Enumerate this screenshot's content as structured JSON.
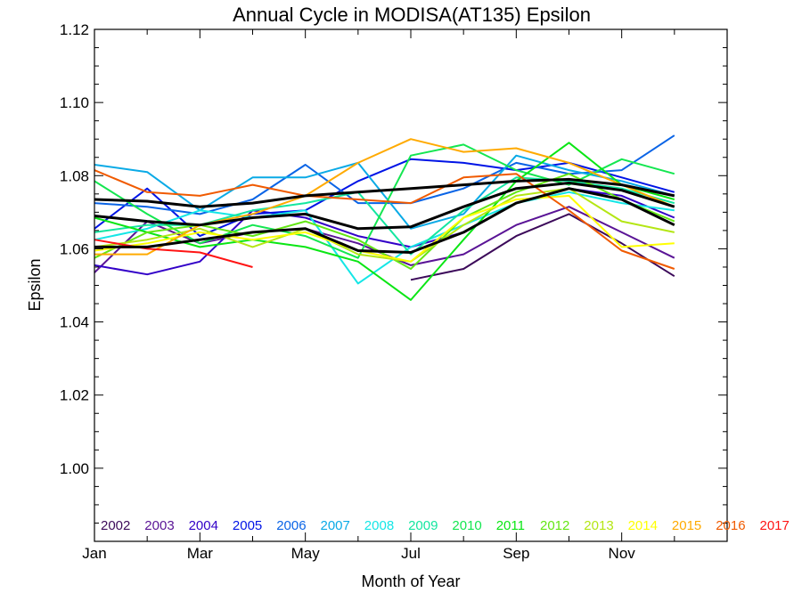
{
  "chart_data": {
    "type": "line",
    "title": "Annual Cycle in MODISA(AT135) Epsilon",
    "xlabel": "Month of Year",
    "ylabel": "Epsilon",
    "xlim": [
      1,
      13
    ],
    "ylim": [
      0.98,
      1.12
    ],
    "x_ticks": [
      {
        "value": 1,
        "label": "Jan"
      },
      {
        "value": 3,
        "label": "Mar"
      },
      {
        "value": 5,
        "label": "May"
      },
      {
        "value": 7,
        "label": "Jul"
      },
      {
        "value": 9,
        "label": "Sep"
      },
      {
        "value": 11,
        "label": "Nov"
      }
    ],
    "y_ticks": [
      {
        "value": 1.0,
        "label": "1.00"
      },
      {
        "value": 1.02,
        "label": "1.02"
      },
      {
        "value": 1.04,
        "label": "1.04"
      },
      {
        "value": 1.06,
        "label": "1.06"
      },
      {
        "value": 1.08,
        "label": "1.08"
      },
      {
        "value": 1.1,
        "label": "1.10"
      },
      {
        "value": 1.12,
        "label": "1.12"
      }
    ],
    "grid": false,
    "legend_position": "bottom",
    "series": [
      {
        "name": "2002",
        "color": "#3c0a5a",
        "x": [
          7,
          8,
          9,
          10,
          11,
          12
        ],
        "values": [
          1.0515,
          1.0545,
          1.0635,
          1.0695,
          1.0615,
          1.0525
        ]
      },
      {
        "name": "2003",
        "color": "#5a1496",
        "x": [
          1,
          2,
          3,
          4,
          5,
          6,
          7,
          8,
          9,
          10,
          11,
          12
        ],
        "values": [
          1.0535,
          1.0675,
          1.0615,
          1.0645,
          1.0655,
          1.0615,
          1.0555,
          1.0585,
          1.0665,
          1.0715,
          1.0645,
          1.0575
        ]
      },
      {
        "name": "2004",
        "color": "#3200c8",
        "x": [
          1,
          2,
          3,
          4,
          5,
          6,
          7,
          8,
          9,
          10,
          11,
          12
        ],
        "values": [
          1.0555,
          1.053,
          1.0565,
          1.0705,
          1.0685,
          1.0635,
          1.0605,
          1.0645,
          1.0725,
          1.0765,
          1.0745,
          1.0685
        ]
      },
      {
        "name": "2005",
        "color": "#0014e6",
        "x": [
          1,
          2,
          3,
          4,
          5,
          6,
          7,
          8,
          9,
          10,
          11,
          12
        ],
        "values": [
          1.0655,
          1.0765,
          1.0635,
          1.0695,
          1.0705,
          1.0785,
          1.0845,
          1.0835,
          1.0815,
          1.0835,
          1.0795,
          1.0755
        ]
      },
      {
        "name": "2006",
        "color": "#0a64e6",
        "x": [
          1,
          2,
          3,
          4,
          5,
          6,
          7,
          8,
          9,
          10,
          11,
          12
        ],
        "values": [
          1.0725,
          1.0715,
          1.0695,
          1.0735,
          1.083,
          1.0725,
          1.0725,
          1.0765,
          1.0835,
          1.0805,
          1.0815,
          1.091
        ]
      },
      {
        "name": "2007",
        "color": "#0aaae6",
        "x": [
          1,
          2,
          3,
          4,
          5,
          6,
          7,
          8,
          9,
          10,
          11,
          12
        ],
        "values": [
          1.083,
          1.081,
          1.0705,
          1.0795,
          1.0795,
          1.0835,
          1.0655,
          1.0695,
          1.0855,
          1.0815,
          1.0785,
          1.0745
        ]
      },
      {
        "name": "2008",
        "color": "#14e6e6",
        "x": [
          1,
          2,
          3,
          4,
          5,
          6,
          7,
          8,
          9,
          10,
          11,
          12
        ],
        "values": [
          1.0625,
          1.0655,
          1.0705,
          1.0685,
          1.0705,
          1.0505,
          1.0605,
          1.0665,
          1.0725,
          1.0755,
          1.0725,
          1.0705
        ]
      },
      {
        "name": "2009",
        "color": "#14e6a0",
        "x": [
          1,
          2,
          3,
          4,
          5,
          6,
          7,
          8,
          9,
          10,
          11,
          12
        ],
        "values": [
          1.0645,
          1.0665,
          1.0665,
          1.0705,
          1.0725,
          1.0755,
          1.0585,
          1.0705,
          1.0795,
          1.0785,
          1.0765,
          1.0725
        ]
      },
      {
        "name": "2010",
        "color": "#14e650",
        "x": [
          1,
          2,
          3,
          4,
          5,
          6,
          7,
          8,
          9,
          10,
          11,
          12
        ],
        "values": [
          1.0785,
          1.0695,
          1.0615,
          1.0665,
          1.0635,
          1.0575,
          1.0855,
          1.0885,
          1.0815,
          1.0775,
          1.0845,
          1.0805
        ]
      },
      {
        "name": "2011",
        "color": "#0ae614",
        "x": [
          1,
          2,
          3,
          4,
          5,
          6,
          7,
          8,
          9,
          10,
          11,
          12
        ],
        "values": [
          1.0685,
          1.0645,
          1.0605,
          1.0625,
          1.0605,
          1.0565,
          1.046,
          1.0625,
          1.0785,
          1.089,
          1.0775,
          1.0735
        ]
      },
      {
        "name": "2012",
        "color": "#64e614",
        "x": [
          1,
          2,
          3,
          4,
          5,
          6,
          7,
          8,
          9,
          10,
          11,
          12
        ],
        "values": [
          1.0575,
          1.0645,
          1.0665,
          1.0635,
          1.0675,
          1.0625,
          1.0545,
          1.0685,
          1.0755,
          1.0805,
          1.0735,
          1.0675
        ]
      },
      {
        "name": "2013",
        "color": "#b4e614",
        "x": [
          1,
          2,
          3,
          4,
          5,
          6,
          7,
          8,
          9,
          10,
          11,
          12
        ],
        "values": [
          1.0605,
          1.0625,
          1.0655,
          1.0605,
          1.0655,
          1.0585,
          1.0565,
          1.0665,
          1.0745,
          1.0765,
          1.0675,
          1.0645
        ]
      },
      {
        "name": "2014",
        "color": "#ffff00",
        "x": [
          1,
          2,
          3,
          4,
          5,
          6,
          7,
          8,
          9,
          10,
          11,
          12
        ],
        "values": [
          1.0595,
          1.0615,
          1.0645,
          1.0625,
          1.0645,
          1.0595,
          1.0565,
          1.0685,
          1.0735,
          1.0745,
          1.0605,
          1.0615
        ]
      },
      {
        "name": "2015",
        "color": "#ffaa00",
        "x": [
          1,
          2,
          3,
          4,
          5,
          6,
          7,
          8,
          9,
          10,
          11,
          12
        ],
        "values": [
          1.0585,
          1.0585,
          1.0665,
          1.0695,
          1.0745,
          1.0835,
          1.09,
          1.0865,
          1.0875,
          1.0835,
          1.0775,
          1.0715
        ]
      },
      {
        "name": "2016",
        "color": "#f05a00",
        "x": [
          1,
          2,
          3,
          4,
          5,
          6,
          7,
          8,
          9,
          10,
          11,
          12
        ],
        "values": [
          1.0815,
          1.0755,
          1.0745,
          1.0775,
          1.0745,
          1.0735,
          1.0725,
          1.0795,
          1.0805,
          1.0705,
          1.0595,
          1.0545
        ]
      },
      {
        "name": "2017",
        "color": "#ff1414",
        "x": [
          1,
          2,
          3,
          4
        ],
        "values": [
          1.0625,
          1.06,
          1.059,
          1.055
        ]
      }
    ],
    "mean_lines": [
      {
        "color": "#000000",
        "x": [
          1,
          2,
          3,
          4,
          5,
          6,
          7,
          8,
          9,
          10,
          11,
          12
        ],
        "values": [
          1.0605,
          1.0605,
          1.0625,
          1.0645,
          1.0655,
          1.0595,
          1.059,
          1.0645,
          1.0725,
          1.0765,
          1.0735,
          1.0665
        ]
      },
      {
        "color": "#000000",
        "x": [
          1,
          2,
          3,
          4,
          5,
          6,
          7,
          8,
          9,
          10,
          11,
          12
        ],
        "values": [
          1.069,
          1.0675,
          1.0665,
          1.0685,
          1.0695,
          1.0655,
          1.066,
          1.0715,
          1.0765,
          1.078,
          1.076,
          1.0715
        ]
      },
      {
        "color": "#000000",
        "x": [
          1,
          2,
          3,
          4,
          5,
          6,
          7,
          8,
          9,
          10,
          11,
          12
        ],
        "values": [
          1.0735,
          1.073,
          1.0715,
          1.0725,
          1.0745,
          1.0755,
          1.0765,
          1.0775,
          1.0785,
          1.079,
          1.0775,
          1.0745
        ]
      }
    ]
  }
}
